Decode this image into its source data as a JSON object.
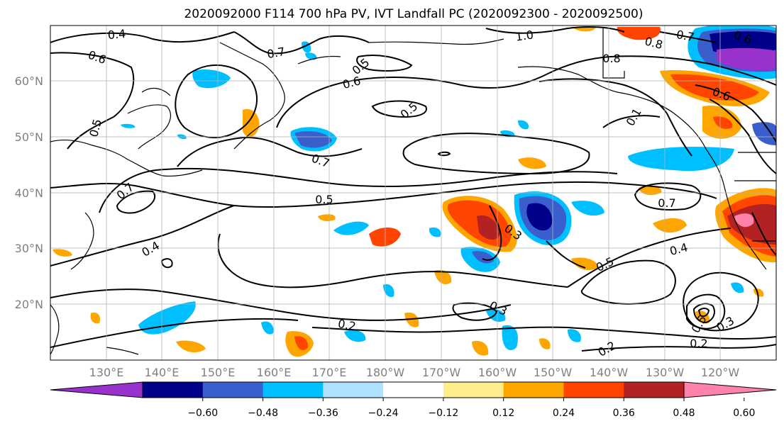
{
  "title": "2020092000 F114 700 hPa PV, IVT Landfall PC (2020092300 - 2020092500)",
  "lat_labels": [
    "60°N",
    "50°N",
    "40°N",
    "30°N",
    "20°N"
  ],
  "lon_labels": [
    "130°E",
    "140°E",
    "150°E",
    "160°E",
    "170°E",
    "180°W",
    "170°W",
    "160°W",
    "150°W",
    "140°W",
    "130°W",
    "120°W"
  ],
  "colorbar": {
    "colors": [
      "#9932cc",
      "#00008b",
      "#3a5fcd",
      "#00bfff",
      "#b0e2ff",
      "#ffffff",
      "#ffec8b",
      "#ffa500",
      "#ff4500",
      "#b22222",
      "#ff82ab"
    ],
    "tick_labels": [
      "-0.60",
      "-0.48",
      "-0.36",
      "-0.24",
      "-0.12",
      "0.12",
      "0.24",
      "0.36",
      "0.48",
      "0.60"
    ]
  },
  "contour_labels": [
    "0.4",
    "0.6",
    "0.7",
    "0.6",
    "0.5",
    "0.5",
    "1.0",
    "0.8",
    "0.7",
    "0.6",
    "0.8",
    "0.6",
    "0.7",
    "0.7",
    "0.5",
    "0.7",
    "0.5",
    "0.3",
    "0.4",
    "0.5",
    "0.4",
    "0.3",
    "0.2",
    "0.2",
    "0.2",
    "0.3",
    "0.5",
    "0.1"
  ]
}
